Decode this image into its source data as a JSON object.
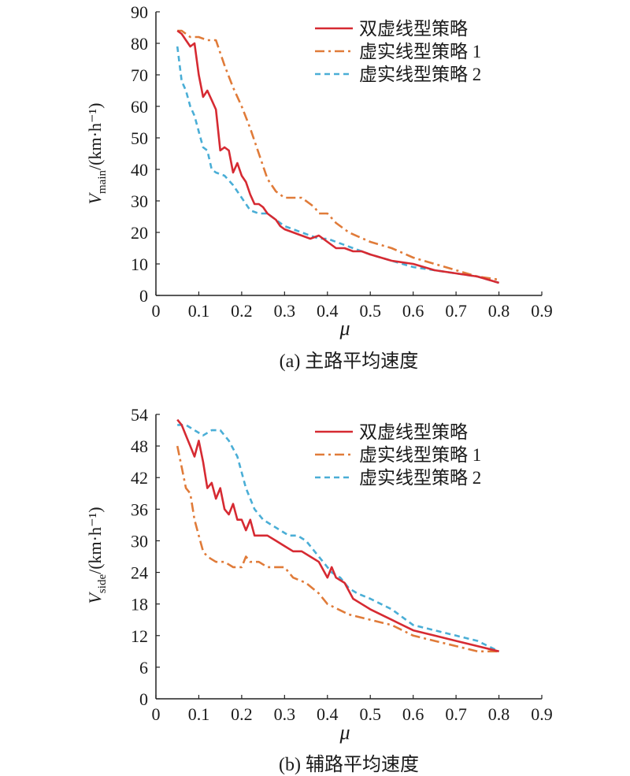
{
  "chart_data": [
    {
      "type": "line",
      "caption": "(a) 主路平均速度",
      "xlabel": "μ",
      "ylabel_main": "V",
      "ylabel_sub": "main",
      "ylabel_unit": "/(km·h⁻¹)",
      "xlim": [
        0,
        0.9
      ],
      "ylim": [
        0,
        90
      ],
      "xticks": [
        "0",
        "0.1",
        "0.2",
        "0.3",
        "0.4",
        "0.5",
        "0.6",
        "0.7",
        "0.8",
        "0.9"
      ],
      "yticks": [
        "0",
        "10",
        "20",
        "30",
        "40",
        "50",
        "60",
        "70",
        "80",
        "90"
      ],
      "legend_position": "top-right",
      "series": [
        {
          "name": "双虚线型策略",
          "color": "#d62a32",
          "style": "solid",
          "x": [
            0.05,
            0.06,
            0.07,
            0.08,
            0.09,
            0.1,
            0.11,
            0.12,
            0.13,
            0.14,
            0.15,
            0.16,
            0.17,
            0.18,
            0.19,
            0.2,
            0.21,
            0.22,
            0.23,
            0.24,
            0.25,
            0.26,
            0.27,
            0.28,
            0.29,
            0.3,
            0.32,
            0.34,
            0.36,
            0.38,
            0.4,
            0.42,
            0.44,
            0.46,
            0.48,
            0.5,
            0.55,
            0.6,
            0.65,
            0.7,
            0.75,
            0.8
          ],
          "y": [
            84,
            83,
            81,
            79,
            80,
            70,
            63,
            65,
            62,
            59,
            46,
            47,
            46,
            39,
            42,
            38,
            36,
            32,
            29,
            29,
            28,
            26,
            25,
            24,
            22,
            21,
            20,
            19,
            18,
            19,
            17,
            15,
            15,
            14,
            14,
            13,
            11,
            10,
            8,
            7,
            6,
            4
          ]
        },
        {
          "name": "虚实线型策略 1",
          "color": "#e07b39",
          "style": "dashdot",
          "x": [
            0.05,
            0.06,
            0.07,
            0.08,
            0.1,
            0.12,
            0.14,
            0.16,
            0.18,
            0.2,
            0.22,
            0.24,
            0.26,
            0.28,
            0.3,
            0.32,
            0.34,
            0.36,
            0.37,
            0.38,
            0.4,
            0.42,
            0.45,
            0.5,
            0.55,
            0.6,
            0.65,
            0.7,
            0.75,
            0.8
          ],
          "y": [
            84,
            84,
            83,
            82,
            82,
            81,
            81,
            73,
            66,
            60,
            53,
            45,
            37,
            33,
            31,
            31,
            31,
            29,
            28,
            26,
            26,
            23,
            20,
            17,
            15,
            12,
            10,
            8,
            6,
            5
          ]
        },
        {
          "name": "虚实线型策略 2",
          "color": "#4aaed6",
          "style": "dashed",
          "x": [
            0.05,
            0.06,
            0.07,
            0.08,
            0.09,
            0.1,
            0.11,
            0.12,
            0.13,
            0.14,
            0.16,
            0.18,
            0.2,
            0.22,
            0.24,
            0.26,
            0.28,
            0.3,
            0.32,
            0.34,
            0.36,
            0.38,
            0.4,
            0.42,
            0.44,
            0.46,
            0.5,
            0.55,
            0.6,
            0.65,
            0.7,
            0.75,
            0.8
          ],
          "y": [
            79,
            68,
            65,
            60,
            57,
            52,
            47,
            46,
            40,
            39,
            38,
            35,
            31,
            27,
            26,
            26,
            24,
            22,
            21,
            20,
            19,
            18,
            18,
            17,
            16,
            15,
            13,
            11,
            9,
            8,
            7,
            6,
            4
          ]
        }
      ]
    },
    {
      "type": "line",
      "caption": "(b) 辅路平均速度",
      "xlabel": "μ",
      "ylabel_main": "V",
      "ylabel_sub": "side",
      "ylabel_unit": "/(km·h⁻¹)",
      "xlim": [
        0,
        0.9
      ],
      "ylim": [
        0,
        54
      ],
      "xticks": [
        "0",
        "0.1",
        "0.2",
        "0.3",
        "0.4",
        "0.5",
        "0.6",
        "0.7",
        "0.8",
        "0.9"
      ],
      "yticks": [
        "0",
        "6",
        "12",
        "18",
        "24",
        "30",
        "36",
        "42",
        "48",
        "54"
      ],
      "legend_position": "top-right",
      "series": [
        {
          "name": "双虚线型策略",
          "color": "#d62a32",
          "style": "solid",
          "x": [
            0.05,
            0.06,
            0.07,
            0.08,
            0.09,
            0.1,
            0.11,
            0.12,
            0.13,
            0.14,
            0.15,
            0.16,
            0.17,
            0.18,
            0.19,
            0.2,
            0.21,
            0.22,
            0.23,
            0.24,
            0.26,
            0.28,
            0.3,
            0.32,
            0.34,
            0.36,
            0.38,
            0.4,
            0.41,
            0.42,
            0.44,
            0.46,
            0.48,
            0.5,
            0.55,
            0.6,
            0.65,
            0.7,
            0.75,
            0.8
          ],
          "y": [
            53,
            52,
            50,
            48,
            46,
            49,
            45,
            40,
            41,
            38,
            40,
            36,
            35,
            37,
            34,
            34,
            32,
            34,
            31,
            31,
            31,
            30,
            29,
            28,
            28,
            27,
            26,
            23,
            25,
            23,
            22,
            19,
            18,
            17,
            15,
            13,
            12,
            11,
            10,
            9
          ]
        },
        {
          "name": "虚实线型策略 1",
          "color": "#e07b39",
          "style": "dashdot",
          "x": [
            0.05,
            0.06,
            0.07,
            0.08,
            0.09,
            0.1,
            0.11,
            0.12,
            0.14,
            0.16,
            0.18,
            0.2,
            0.21,
            0.22,
            0.24,
            0.26,
            0.28,
            0.3,
            0.32,
            0.35,
            0.38,
            0.4,
            0.45,
            0.5,
            0.55,
            0.6,
            0.65,
            0.7,
            0.75,
            0.8
          ],
          "y": [
            48,
            44,
            40,
            39,
            34,
            31,
            28,
            27,
            26,
            26,
            25,
            25,
            27,
            26,
            26,
            25,
            25,
            25,
            23,
            22,
            20,
            18,
            16,
            15,
            14,
            12,
            11,
            10,
            9,
            9
          ]
        },
        {
          "name": "虚实线型策略 2",
          "color": "#4aaed6",
          "style": "dashed",
          "x": [
            0.05,
            0.07,
            0.09,
            0.11,
            0.13,
            0.15,
            0.17,
            0.19,
            0.21,
            0.23,
            0.25,
            0.27,
            0.29,
            0.31,
            0.33,
            0.35,
            0.37,
            0.39,
            0.41,
            0.43,
            0.45,
            0.47,
            0.5,
            0.55,
            0.6,
            0.65,
            0.7,
            0.75,
            0.8
          ],
          "y": [
            52,
            52,
            51,
            50,
            51,
            51,
            49,
            46,
            40,
            36,
            34,
            33,
            32,
            31,
            31,
            30,
            28,
            26,
            24,
            23,
            21,
            20,
            19,
            17,
            14,
            13,
            12,
            11,
            9
          ]
        }
      ]
    }
  ]
}
